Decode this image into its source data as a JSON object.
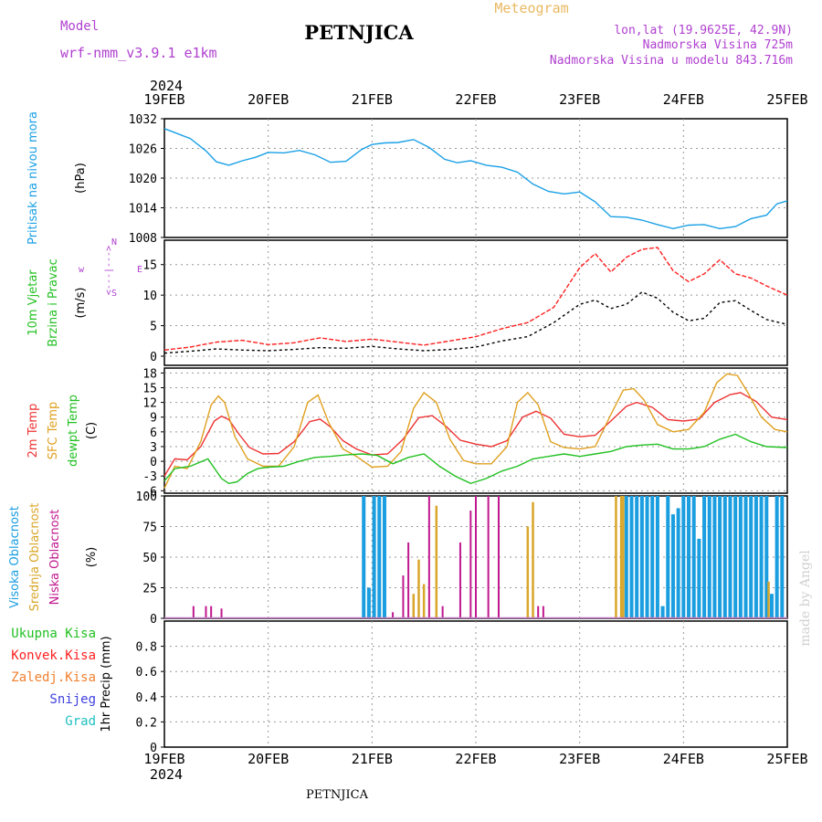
{
  "header": {
    "model_label": "Model",
    "model_name": "wrf-nmm_v3.9.1  e1km",
    "station": "PETNJICA",
    "product": "Meteogram",
    "lonlat": "lon,lat (19.9625E, 42.9N)",
    "altitude": "Nadmorska Visina 725m",
    "model_altitude": "Nadmorska Visina u modelu 843.716m"
  },
  "footer": {
    "station": "PETNJICA",
    "credit": "made by Angel"
  },
  "colors": {
    "pressure": "#1aa0e6",
    "speed": "#000000",
    "gust": "#ff2020",
    "temp2m": "#ee3333",
    "sfc": "#e0a020",
    "dewpt": "#22c022",
    "cloud_high": "#1a9ee0",
    "cloud_mid": "#d9a62a",
    "cloud_low": "#c0188f",
    "title_purple": "#b040d0",
    "meteogram": "#e8b860"
  },
  "chart_data": [
    {
      "type": "line",
      "title": "",
      "ylabel": [
        "Pritisak na nivou mora",
        "(hPa)"
      ],
      "ylim": [
        1008,
        1032
      ],
      "yticks": [
        1008,
        1014,
        1020,
        1026,
        1032
      ],
      "x_year": "2024",
      "x_labels": [
        "19FEB",
        "20FEB",
        "21FEB",
        "22FEB",
        "23FEB",
        "24FEB",
        "25FEB"
      ],
      "x_range_days": [
        0,
        6
      ],
      "grid": true,
      "series": [
        {
          "name": "Pritisak na nivou mora",
          "x": [
            0,
            0.1,
            0.25,
            0.4,
            0.5,
            0.62,
            0.75,
            0.88,
            1.0,
            1.15,
            1.3,
            1.45,
            1.6,
            1.75,
            1.9,
            2.0,
            2.12,
            2.25,
            2.4,
            2.55,
            2.7,
            2.82,
            2.95,
            3.1,
            3.25,
            3.4,
            3.55,
            3.7,
            3.85,
            4.0,
            4.15,
            4.3,
            4.45,
            4.6,
            4.75,
            4.9,
            5.05,
            5.2,
            5.35,
            5.5,
            5.65,
            5.8,
            5.9,
            6.0
          ],
          "values": [
            1030,
            1029.2,
            1028,
            1025.5,
            1023.3,
            1022.6,
            1023.5,
            1024.2,
            1025.2,
            1025.1,
            1025.6,
            1024.7,
            1023.2,
            1023.4,
            1025.8,
            1026.8,
            1027.1,
            1027.2,
            1027.8,
            1026.2,
            1023.8,
            1023.1,
            1023.5,
            1022.6,
            1022.2,
            1021.2,
            1018.8,
            1017.3,
            1016.8,
            1017.2,
            1015.2,
            1012.2,
            1012.1,
            1011.5,
            1010.6,
            1009.8,
            1010.5,
            1010.6,
            1009.8,
            1010.2,
            1011.8,
            1012.5,
            1014.8,
            1015.4
          ]
        }
      ]
    },
    {
      "type": "line",
      "title": "",
      "ylabel": [
        "10m Vjetar",
        "Brzina i Pravac",
        "(m/s)"
      ],
      "direction_legend": [
        "N",
        "w",
        "<---|--->",
        "E",
        "S"
      ],
      "ylim": [
        -1.5,
        19
      ],
      "yticks": [
        0,
        5,
        10,
        15
      ],
      "grid": true,
      "series": [
        {
          "name": "speed",
          "x": [
            0,
            0.25,
            0.5,
            0.75,
            1.0,
            1.25,
            1.5,
            1.75,
            2.0,
            2.25,
            2.5,
            2.75,
            3.0,
            3.25,
            3.5,
            3.75,
            4.0,
            4.15,
            4.3,
            4.45,
            4.6,
            4.75,
            4.9,
            5.05,
            5.2,
            5.35,
            5.5,
            5.65,
            5.8,
            6.0
          ],
          "values": [
            0.5,
            0.8,
            1.2,
            1.0,
            0.9,
            1.1,
            1.4,
            1.3,
            1.6,
            1.2,
            0.9,
            1.1,
            1.5,
            2.5,
            3.2,
            5.5,
            8.5,
            9.2,
            7.8,
            8.5,
            10.5,
            9.5,
            7.2,
            5.8,
            6.2,
            8.8,
            9.1,
            7.5,
            6.0,
            5.2
          ]
        },
        {
          "name": "gust",
          "x": [
            0,
            0.25,
            0.5,
            0.75,
            1.0,
            1.25,
            1.5,
            1.75,
            2.0,
            2.25,
            2.5,
            2.75,
            3.0,
            3.25,
            3.5,
            3.75,
            4.0,
            4.15,
            4.3,
            4.45,
            4.6,
            4.75,
            4.9,
            5.05,
            5.2,
            5.35,
            5.5,
            5.65,
            5.8,
            6.0
          ],
          "values": [
            1.0,
            1.5,
            2.3,
            2.6,
            1.9,
            2.2,
            3.0,
            2.4,
            2.8,
            2.3,
            1.8,
            2.5,
            3.2,
            4.5,
            5.5,
            8.0,
            14.5,
            16.8,
            13.8,
            16.2,
            17.5,
            17.8,
            14.0,
            12.2,
            13.5,
            15.8,
            13.5,
            12.8,
            11.5,
            10.0
          ]
        }
      ]
    },
    {
      "type": "line",
      "title": "",
      "ylabel": [
        "2m Temp",
        "SFC Temp",
        "dewpt Temp",
        "(C)"
      ],
      "ylim": [
        -6.5,
        19
      ],
      "yticks": [
        -6,
        -3,
        0,
        3,
        6,
        9,
        12,
        15,
        18
      ],
      "grid": true,
      "series": [
        {
          "name": "2m Temp",
          "x": [
            0,
            0.1,
            0.22,
            0.35,
            0.48,
            0.55,
            0.62,
            0.72,
            0.82,
            0.95,
            1.1,
            1.25,
            1.4,
            1.5,
            1.6,
            1.72,
            1.85,
            2.0,
            2.15,
            2.3,
            2.45,
            2.58,
            2.72,
            2.85,
            3.0,
            3.15,
            3.3,
            3.45,
            3.58,
            3.72,
            3.85,
            4.0,
            4.15,
            4.3,
            4.45,
            4.55,
            4.7,
            4.85,
            5.0,
            5.15,
            5.3,
            5.45,
            5.55,
            5.7,
            5.85,
            6.0
          ],
          "values": [
            -3,
            0.5,
            0.3,
            3.0,
            8.2,
            9.2,
            8.5,
            5.5,
            2.8,
            1.5,
            1.6,
            4.0,
            8.1,
            8.6,
            7.0,
            4.2,
            2.5,
            1.3,
            1.5,
            4.5,
            8.9,
            9.3,
            7.0,
            4.3,
            3.5,
            3.0,
            4.2,
            9.0,
            10.2,
            8.8,
            5.5,
            5.0,
            5.3,
            8.2,
            11.2,
            12.0,
            11.0,
            8.5,
            8.2,
            8.6,
            12.0,
            13.6,
            14.0,
            12.2,
            9.0,
            8.5
          ]
        },
        {
          "name": "SFC Temp",
          "x": [
            0,
            0.1,
            0.22,
            0.35,
            0.45,
            0.52,
            0.58,
            0.68,
            0.8,
            0.95,
            1.1,
            1.25,
            1.38,
            1.48,
            1.58,
            1.72,
            1.85,
            2.0,
            2.15,
            2.28,
            2.4,
            2.5,
            2.62,
            2.75,
            2.88,
            3.0,
            3.15,
            3.3,
            3.4,
            3.5,
            3.6,
            3.72,
            3.85,
            4.0,
            4.15,
            4.3,
            4.42,
            4.52,
            4.62,
            4.75,
            4.9,
            5.05,
            5.2,
            5.32,
            5.42,
            5.52,
            5.62,
            5.75,
            5.88,
            6.0
          ],
          "values": [
            -5.5,
            -1.0,
            -1.5,
            4.0,
            11.5,
            13.3,
            12.0,
            5.0,
            0.5,
            -1.0,
            -1.0,
            3.0,
            12.0,
            13.5,
            8.0,
            2.5,
            1.0,
            -1.2,
            -1.0,
            2.0,
            10.8,
            14.0,
            12.0,
            4.5,
            0.2,
            -0.5,
            -0.5,
            3.0,
            12.0,
            14.0,
            11.5,
            4.0,
            2.8,
            2.5,
            3.0,
            9.5,
            14.5,
            14.8,
            12.5,
            7.5,
            6.0,
            6.5,
            10.0,
            16.0,
            17.8,
            17.5,
            14.0,
            9.0,
            6.5,
            6.0
          ]
        },
        {
          "name": "dewpt Temp",
          "x": [
            0,
            0.1,
            0.25,
            0.42,
            0.55,
            0.62,
            0.7,
            0.8,
            0.9,
            1.0,
            1.15,
            1.3,
            1.45,
            1.6,
            1.75,
            1.9,
            2.05,
            2.2,
            2.35,
            2.5,
            2.65,
            2.8,
            2.95,
            3.1,
            3.25,
            3.4,
            3.55,
            3.7,
            3.85,
            4.0,
            4.15,
            4.3,
            4.45,
            4.6,
            4.75,
            4.9,
            5.05,
            5.2,
            5.35,
            5.5,
            5.65,
            5.8,
            6.0
          ],
          "values": [
            -4,
            -1.5,
            -1.0,
            0.5,
            -3.5,
            -4.5,
            -4.2,
            -2.5,
            -1.5,
            -1.2,
            -1.0,
            0.0,
            0.8,
            1.0,
            1.3,
            1.5,
            1.2,
            -0.5,
            0.8,
            1.5,
            -1.0,
            -3.0,
            -4.5,
            -3.5,
            -2.0,
            -1.0,
            0.5,
            1.0,
            1.5,
            1.0,
            1.5,
            2.0,
            3.0,
            3.3,
            3.5,
            2.5,
            2.5,
            3.0,
            4.5,
            5.5,
            4.0,
            3.0,
            2.8
          ]
        }
      ]
    },
    {
      "type": "bar",
      "title": "",
      "ylabel": [
        "Visoka Oblacnost",
        "Srednja Oblacnost",
        "Niska Oblacnost",
        "(%)"
      ],
      "ylim": [
        0,
        100
      ],
      "yticks": [
        0,
        25,
        50,
        75,
        100
      ],
      "grid": true,
      "series": [
        {
          "name": "Visoka Oblacnost",
          "x": [
            1.92,
            1.97,
            2.02,
            2.07,
            2.12,
            4.45,
            4.5,
            4.55,
            4.6,
            4.65,
            4.7,
            4.75,
            4.8,
            4.85,
            4.9,
            4.95,
            5.0,
            5.05,
            5.1,
            5.15,
            5.2,
            5.25,
            5.3,
            5.35,
            5.4,
            5.45,
            5.5,
            5.55,
            5.6,
            5.65,
            5.7,
            5.75,
            5.8,
            5.85,
            5.9,
            5.95
          ],
          "values": [
            100,
            25,
            100,
            100,
            100,
            100,
            100,
            100,
            100,
            100,
            100,
            100,
            10,
            100,
            85,
            90,
            100,
            100,
            100,
            65,
            100,
            100,
            100,
            100,
            100,
            100,
            100,
            100,
            100,
            100,
            100,
            100,
            100,
            20,
            100,
            100
          ]
        },
        {
          "name": "Srednja Oblacnost",
          "x": [
            2.4,
            2.45,
            2.5,
            2.62,
            3.5,
            3.55,
            4.35,
            4.4,
            4.42,
            5.82
          ],
          "values": [
            20,
            48,
            28,
            92,
            75,
            95,
            100,
            100,
            100,
            30
          ]
        },
        {
          "name": "Niska Oblacnost",
          "x": [
            0.28,
            0.4,
            0.45,
            0.55,
            2.2,
            2.3,
            2.35,
            2.55,
            2.68,
            2.85,
            2.95,
            3.0,
            3.12,
            3.22,
            3.6,
            3.65
          ],
          "values": [
            10,
            10,
            10,
            8,
            5,
            35,
            62,
            100,
            10,
            62,
            88,
            100,
            100,
            100,
            10,
            10
          ]
        }
      ]
    },
    {
      "type": "bar",
      "title": "",
      "ylabel": [
        "Ukupna Kisa",
        "Konvek.Kisa",
        "Zaledj.Kisa",
        "Snijeg",
        "Grad",
        "1hr Precip (mm)"
      ],
      "ylim": [
        0,
        1.0
      ],
      "yticks": [
        0,
        0.2,
        0.4,
        0.6,
        0.8
      ],
      "ytick_labels": [
        "0",
        "0.2",
        "0.4",
        "0.6",
        "0.8"
      ],
      "grid": true,
      "series": [
        {
          "name": "Ukupna Kisa",
          "x": [],
          "values": []
        }
      ]
    }
  ]
}
